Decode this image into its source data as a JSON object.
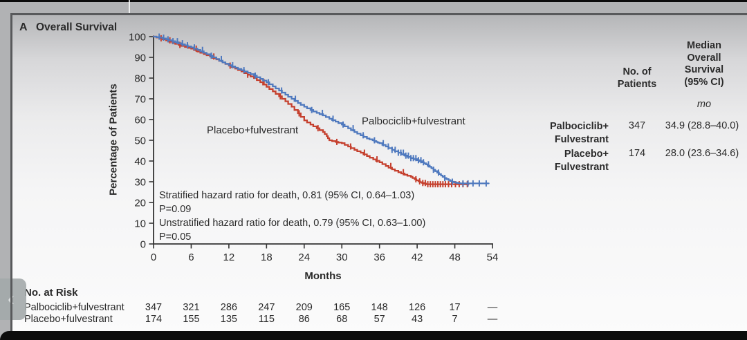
{
  "figure": {
    "panel_label": "A",
    "title": "Overall Survival"
  },
  "chart_data": {
    "type": "line",
    "subtype": "kaplan-meier-step",
    "title": "Overall Survival",
    "xlabel": "Months",
    "ylabel": "Percentage of Patients",
    "xlim": [
      0,
      54
    ],
    "ylim": [
      0,
      100
    ],
    "x_ticks": [
      0,
      6,
      12,
      18,
      24,
      30,
      36,
      42,
      48,
      54
    ],
    "y_ticks": [
      0,
      10,
      20,
      30,
      40,
      50,
      60,
      70,
      80,
      90,
      100
    ],
    "grid": false,
    "annotations": [
      "Stratified hazard ratio for death, 0.81 (95% CI, 0.64–1.03)",
      "P=0.09",
      "Unstratified hazard ratio for death, 0.79 (95% CI, 0.63–1.00)",
      "P=0.05"
    ],
    "series": [
      {
        "id": "placebo",
        "name": "Placebo+fulvestrant",
        "color": "#c5402e",
        "points": [
          [
            0,
            100
          ],
          [
            1,
            99.2
          ],
          [
            2,
            98.2
          ],
          [
            3,
            97
          ],
          [
            4,
            96
          ],
          [
            5,
            95
          ],
          [
            6,
            94.2
          ],
          [
            7,
            92.8
          ],
          [
            8,
            91.6
          ],
          [
            9,
            90.4
          ],
          [
            10,
            89
          ],
          [
            11,
            87.6
          ],
          [
            12,
            86
          ],
          [
            13,
            84.6
          ],
          [
            14,
            83.2
          ],
          [
            15,
            81.6
          ],
          [
            16,
            80
          ],
          [
            17,
            78
          ],
          [
            18,
            75.8
          ],
          [
            19,
            73.6
          ],
          [
            20,
            71.2
          ],
          [
            21,
            68.8
          ],
          [
            22,
            66.2
          ],
          [
            23,
            63
          ],
          [
            24,
            59.6
          ],
          [
            25,
            57.6
          ],
          [
            26,
            55.8
          ],
          [
            27,
            54
          ],
          [
            27.6,
            52
          ],
          [
            28,
            50
          ],
          [
            29,
            49.2
          ],
          [
            30,
            48.6
          ],
          [
            31,
            47
          ],
          [
            32,
            45.4
          ],
          [
            33,
            44
          ],
          [
            34,
            42.4
          ],
          [
            35,
            40.8
          ],
          [
            36,
            39.4
          ],
          [
            37,
            37.6
          ],
          [
            38,
            36
          ],
          [
            39,
            34.6
          ],
          [
            40,
            33.4
          ],
          [
            41,
            32.4
          ],
          [
            41.6,
            31.2
          ],
          [
            42.2,
            30.2
          ],
          [
            42.8,
            29.4
          ],
          [
            43.4,
            28.8
          ],
          [
            50.2,
            28.8
          ]
        ],
        "censor_months": [
          1.2,
          2.6,
          4.2,
          6.8,
          9.6,
          12.2,
          15.0,
          17.6,
          20.2,
          23.2,
          26.2,
          29.2,
          31.4,
          33.6,
          35.6,
          37.8,
          39.8,
          41.8,
          42.4,
          42.9,
          43.3,
          43.7,
          44.1,
          44.5,
          44.9,
          45.3,
          45.7,
          46.1,
          46.5,
          47.0,
          47.5,
          48.1,
          48.7,
          49.3,
          50.0
        ]
      },
      {
        "id": "palbociclib",
        "name": "Palbociclib+fulvestrant",
        "color": "#4f79be",
        "points": [
          [
            0,
            100
          ],
          [
            1,
            99.5
          ],
          [
            2,
            98.7
          ],
          [
            3,
            97.8
          ],
          [
            4,
            96.8
          ],
          [
            5,
            95.8
          ],
          [
            6,
            94.8
          ],
          [
            7,
            93.6
          ],
          [
            8,
            92.2
          ],
          [
            9,
            90.8
          ],
          [
            10,
            89.2
          ],
          [
            11,
            87.6
          ],
          [
            12,
            86.2
          ],
          [
            13,
            85
          ],
          [
            14,
            83.8
          ],
          [
            15,
            82.6
          ],
          [
            16,
            81.2
          ],
          [
            17,
            79.6
          ],
          [
            18,
            78
          ],
          [
            19,
            76
          ],
          [
            20,
            74
          ],
          [
            21,
            72
          ],
          [
            22,
            70
          ],
          [
            23,
            68
          ],
          [
            24,
            66.2
          ],
          [
            25,
            64.6
          ],
          [
            26,
            63.2
          ],
          [
            27,
            62
          ],
          [
            28,
            60.4
          ],
          [
            29,
            59
          ],
          [
            30,
            57.6
          ],
          [
            31,
            55.8
          ],
          [
            32,
            54
          ],
          [
            33,
            52.4
          ],
          [
            34,
            50.9
          ],
          [
            34.9,
            50
          ],
          [
            35.5,
            49.2
          ],
          [
            36,
            48.6
          ],
          [
            37,
            47
          ],
          [
            38,
            45.4
          ],
          [
            39,
            44
          ],
          [
            40,
            42.6
          ],
          [
            41,
            41.4
          ],
          [
            42,
            40.4
          ],
          [
            42.8,
            39.4
          ],
          [
            43.4,
            38.4
          ],
          [
            44,
            37.2
          ],
          [
            44.6,
            35.8
          ],
          [
            45.2,
            34.4
          ],
          [
            45.8,
            33
          ],
          [
            46.4,
            31.8
          ],
          [
            47,
            30.8
          ],
          [
            47.6,
            30
          ],
          [
            48.2,
            29.5
          ],
          [
            48.8,
            29.2
          ],
          [
            53.4,
            29.2
          ]
        ],
        "censor_months": [
          0.9,
          1.6,
          2.3,
          3.1,
          3.8,
          4.6,
          5.4,
          6.5,
          7.8,
          9.2,
          10.8,
          12.6,
          14.4,
          16.2,
          18.3,
          20.4,
          22.6,
          25.2,
          26.9,
          28.6,
          30.2,
          31.8,
          33.4,
          35.2,
          36.6,
          37.4,
          38.0,
          38.5,
          39.0,
          39.4,
          39.8,
          40.2,
          40.6,
          41.0,
          41.4,
          41.8,
          42.2,
          42.6,
          43.0,
          43.8,
          44.6,
          45.4,
          46.4,
          47.6,
          49.3,
          50.1,
          50.9,
          51.9,
          53.0
        ]
      }
    ],
    "curve_labels": {
      "placebo": "Placebo+fulvestrant",
      "palbociclib": "Palbociclib+fulvestrant"
    }
  },
  "summary_table": {
    "header_patients": [
      "No. of",
      "Patients"
    ],
    "header_median": [
      "Median",
      "Overall",
      "Survival",
      "(95% CI)"
    ],
    "unit": "mo",
    "rows": [
      {
        "label_lines": [
          "Palbociclib+",
          "Fulvestrant"
        ],
        "n": "347",
        "median": "34.9 (28.8–40.0)"
      },
      {
        "label_lines": [
          "Placebo+",
          "Fulvestrant"
        ],
        "n": "174",
        "median": "28.0 (23.6–34.6)"
      }
    ]
  },
  "risk_table": {
    "title": "No. at Risk",
    "months": [
      0,
      6,
      12,
      18,
      24,
      30,
      36,
      42,
      48,
      54
    ],
    "rows": [
      {
        "label": "Palbociclib+fulvestrant",
        "values": [
          "347",
          "321",
          "286",
          "247",
          "209",
          "165",
          "148",
          "126",
          "17",
          "—"
        ]
      },
      {
        "label": "Placebo+fulvestrant",
        "values": [
          "174",
          "155",
          "135",
          "115",
          "86",
          "68",
          "57",
          "43",
          "7",
          "—"
        ]
      }
    ]
  },
  "nav": {
    "prev": "‹"
  },
  "colors": {
    "palbociclib_line": "#4f79be",
    "placebo_line": "#c5402e",
    "axis": "#333333",
    "text": "#2a2a2a"
  }
}
